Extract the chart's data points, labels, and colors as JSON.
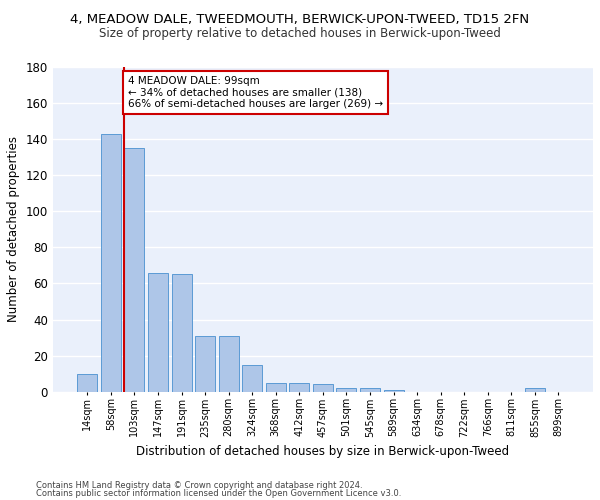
{
  "title": "4, MEADOW DALE, TWEEDMOUTH, BERWICK-UPON-TWEED, TD15 2FN",
  "subtitle": "Size of property relative to detached houses in Berwick-upon-Tweed",
  "xlabel": "Distribution of detached houses by size in Berwick-upon-Tweed",
  "ylabel": "Number of detached properties",
  "bar_labels": [
    "14sqm",
    "58sqm",
    "103sqm",
    "147sqm",
    "191sqm",
    "235sqm",
    "280sqm",
    "324sqm",
    "368sqm",
    "412sqm",
    "457sqm",
    "501sqm",
    "545sqm",
    "589sqm",
    "634sqm",
    "678sqm",
    "722sqm",
    "766sqm",
    "811sqm",
    "855sqm",
    "899sqm"
  ],
  "bar_values": [
    10,
    143,
    135,
    66,
    65,
    31,
    31,
    15,
    5,
    5,
    4,
    2,
    2,
    1,
    0,
    0,
    0,
    0,
    0,
    2,
    0
  ],
  "bar_color": "#aec6e8",
  "bar_edge_color": "#5b9bd5",
  "background_color": "#eaf0fb",
  "grid_color": "#ffffff",
  "annotation_line1": "4 MEADOW DALE: 99sqm",
  "annotation_line2": "← 34% of detached houses are smaller (138)",
  "annotation_line3": "66% of semi-detached houses are larger (269) →",
  "red_line_color": "#cc0000",
  "annotation_box_color": "#ffffff",
  "annotation_box_edge": "#cc0000",
  "ylim": [
    0,
    180
  ],
  "yticks": [
    0,
    20,
    40,
    60,
    80,
    100,
    120,
    140,
    160,
    180
  ],
  "footer1": "Contains HM Land Registry data © Crown copyright and database right 2024.",
  "footer2": "Contains public sector information licensed under the Open Government Licence v3.0."
}
